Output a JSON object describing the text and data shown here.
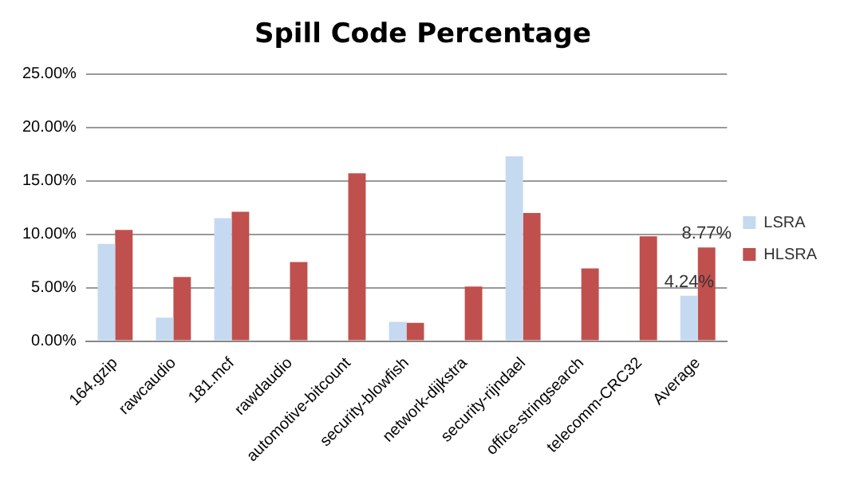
{
  "chart_data": {
    "type": "bar",
    "title": "Spill Code Percentage",
    "categories": [
      "164.gzip",
      "rawcaudio",
      "181.mcf",
      "rawdaudio",
      "automotive-bitcount",
      "security-blowfish",
      "network-dijkstra",
      "security-rijndael",
      "office-stringsearch",
      "telecomm-CRC32",
      "Average"
    ],
    "series": [
      {
        "name": "LSRA",
        "color": "#c5d9f1",
        "values": [
          9.1,
          2.2,
          11.5,
          0,
          0,
          1.8,
          0,
          17.3,
          0,
          0,
          4.24
        ],
        "value_labels": [
          null,
          null,
          null,
          null,
          null,
          null,
          null,
          null,
          null,
          null,
          "4.24%"
        ]
      },
      {
        "name": "HLSRA",
        "color": "#c0504d",
        "values": [
          10.4,
          6.0,
          12.1,
          7.4,
          15.7,
          1.7,
          5.1,
          12.0,
          6.8,
          9.8,
          8.77
        ],
        "value_labels": [
          null,
          null,
          null,
          null,
          null,
          null,
          null,
          null,
          null,
          null,
          "8.77%"
        ]
      }
    ],
    "ylim": [
      0,
      25
    ],
    "yticks": [
      {
        "value": 0,
        "label": "0.00%"
      },
      {
        "value": 5,
        "label": "5.00%"
      },
      {
        "value": 10,
        "label": "10.00%"
      },
      {
        "value": 15,
        "label": "15.00%"
      },
      {
        "value": 20,
        "label": "20.00%"
      },
      {
        "value": 25,
        "label": "25.00%"
      }
    ],
    "grid": "y",
    "legend": "right"
  }
}
